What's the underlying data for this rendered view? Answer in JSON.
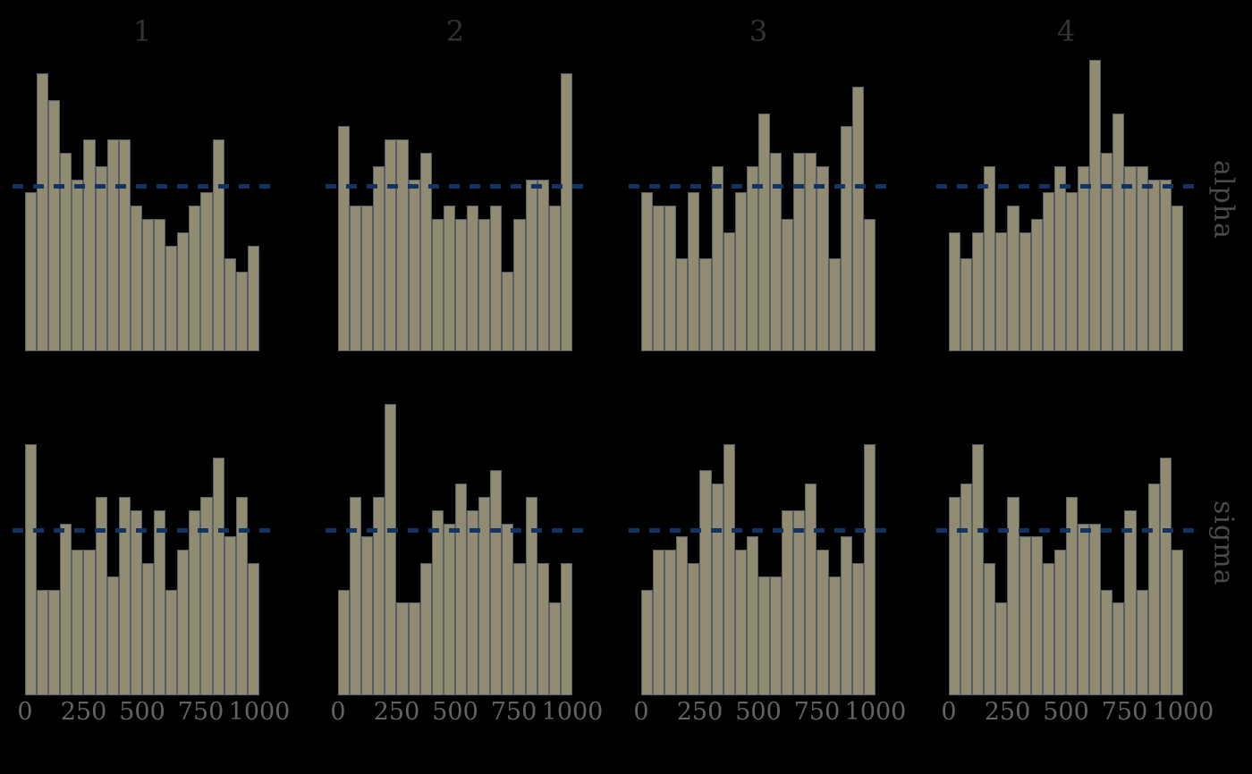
{
  "style": {
    "background": "#000000",
    "bar_fill": "#918b72",
    "bar_edge": "#565e68",
    "dash_color": "#133363",
    "title_color": "#333333",
    "row_label_color": "#4b4b4b",
    "tick_color": "#636363"
  },
  "chart_data": {
    "type": "bar",
    "subtype": "rank-histogram-grid",
    "title": "",
    "columns": [
      "1",
      "2",
      "3",
      "4"
    ],
    "rows": [
      "alpha",
      "sigma"
    ],
    "x_ticks": [
      0,
      250,
      500,
      750,
      1000
    ],
    "x_tick_labels": [
      "0",
      "250",
      "500",
      "750",
      "1000"
    ],
    "x_range": [
      0,
      1000
    ],
    "n_bins": 20,
    "draws_per_panel": 500,
    "expected_count_per_bin": 25,
    "reference_line": {
      "value": 25,
      "style": "dashed"
    },
    "grid": false,
    "legend": false,
    "panels": [
      {
        "row": "alpha",
        "column": "1",
        "counts": [
          24,
          42,
          38,
          30,
          26,
          32,
          28,
          32,
          32,
          22,
          20,
          20,
          16,
          18,
          22,
          24,
          32,
          14,
          12,
          16
        ]
      },
      {
        "row": "alpha",
        "column": "2",
        "counts": [
          34,
          22,
          22,
          28,
          32,
          32,
          26,
          30,
          20,
          22,
          20,
          22,
          20,
          22,
          12,
          20,
          26,
          26,
          22,
          42
        ]
      },
      {
        "row": "alpha",
        "column": "3",
        "counts": [
          24,
          22,
          22,
          14,
          24,
          14,
          28,
          18,
          24,
          28,
          36,
          30,
          20,
          30,
          30,
          28,
          14,
          34,
          40,
          20
        ]
      },
      {
        "row": "alpha",
        "column": "4",
        "counts": [
          18,
          14,
          18,
          28,
          18,
          22,
          18,
          20,
          24,
          28,
          24,
          28,
          44,
          30,
          36,
          28,
          28,
          26,
          26,
          22
        ]
      },
      {
        "row": "sigma",
        "column": "1",
        "counts": [
          38,
          16,
          16,
          26,
          22,
          22,
          30,
          18,
          30,
          28,
          20,
          28,
          16,
          22,
          28,
          30,
          36,
          24,
          30,
          20
        ]
      },
      {
        "row": "sigma",
        "column": "2",
        "counts": [
          16,
          30,
          24,
          30,
          44,
          14,
          14,
          20,
          28,
          26,
          32,
          28,
          30,
          34,
          26,
          20,
          30,
          20,
          14,
          20
        ]
      },
      {
        "row": "sigma",
        "column": "3",
        "counts": [
          16,
          22,
          22,
          24,
          20,
          34,
          32,
          38,
          22,
          24,
          18,
          18,
          28,
          28,
          32,
          22,
          18,
          24,
          20,
          38
        ]
      },
      {
        "row": "sigma",
        "column": "4",
        "counts": [
          30,
          32,
          38,
          20,
          14,
          30,
          24,
          24,
          20,
          22,
          30,
          26,
          26,
          16,
          14,
          28,
          16,
          32,
          36,
          22
        ]
      }
    ]
  }
}
